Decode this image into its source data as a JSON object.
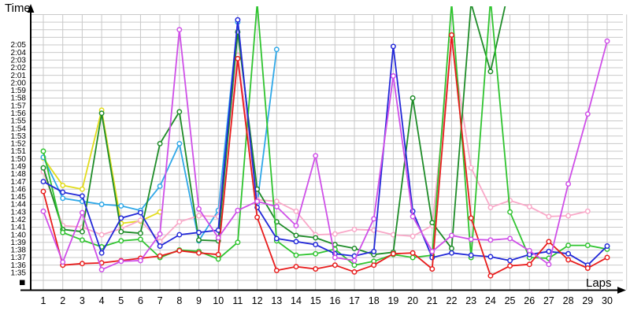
{
  "axes": {
    "y_title": "Time",
    "x_title": "Laps"
  },
  "chart_data": {
    "type": "line",
    "title": "",
    "xlabel": "Laps",
    "ylabel": "Time",
    "x_ticks": [
      1,
      2,
      3,
      4,
      5,
      6,
      7,
      8,
      9,
      10,
      11,
      12,
      13,
      14,
      15,
      16,
      17,
      18,
      19,
      20,
      21,
      22,
      23,
      24,
      25,
      26,
      27,
      28,
      29,
      30
    ],
    "y_tick_labels_top_down": [
      "2:05",
      "2:04",
      "2:03",
      "2:02",
      "2:01",
      "2:00",
      "1:59",
      "1:58",
      "1:57",
      "1:56",
      "1:55",
      "1:54",
      "1:53",
      "1:52",
      "1:51",
      "1:50",
      "1:49",
      "1:48",
      "1:47",
      "1:46",
      "1:45",
      "1:44",
      "1:43",
      "1:42",
      "1:41",
      "1:40",
      "1:39",
      "1:38",
      "1:37",
      "1:36",
      "1:35"
    ],
    "y_axis_seconds_range": [
      95,
      125
    ],
    "grid": true,
    "legend": "none",
    "note_values_unit": "lap time in seconds; 95 = 1:35, 125 = 2:05; values above 129 run off the top of the plot",
    "colors": {
      "grid": "#c9c9c9",
      "axis": "#000000",
      "background": "#ffffff"
    },
    "series": [
      {
        "name": "yellow",
        "color": "#e2dc1a",
        "values": [
          110.1,
          106.5,
          106.0,
          116.4,
          101.5,
          101.8,
          103.0,
          null,
          null,
          null,
          null,
          null,
          null,
          null,
          null,
          null,
          null,
          null,
          null,
          null,
          null,
          null,
          null,
          null,
          null,
          null,
          null,
          null,
          null,
          null
        ]
      },
      {
        "name": "skyblue",
        "color": "#2fa8e8",
        "values": [
          110.2,
          104.8,
          104.4,
          104.0,
          103.8,
          103.2,
          106.4,
          112.0,
          99.2,
          103.2,
          128.0,
          104.1,
          124.4,
          null,
          null,
          null,
          null,
          null,
          null,
          null,
          null,
          null,
          null,
          null,
          null,
          null,
          null,
          null,
          null,
          null
        ]
      },
      {
        "name": "pink",
        "color": "#f9a8c8",
        "values": [
          108.3,
          101.2,
          101.0,
          100.0,
          100.8,
          101.9,
          99.1,
          101.7,
          102.5,
          102.4,
          123.6,
          104.6,
          104.4,
          103.1,
          100.0,
          100.1,
          100.7,
          100.6,
          100.0,
          99.8,
          101.2,
          125.5,
          108.8,
          103.6,
          104.5,
          103.7,
          102.4,
          102.5,
          103.1,
          null
        ]
      },
      {
        "name": "darkgreen",
        "color": "#1e8c28",
        "values": [
          108.8,
          100.7,
          100.4,
          116.0,
          100.4,
          100.2,
          112.0,
          116.2,
          99.3,
          99.2,
          126.7,
          106.0,
          101.7,
          99.9,
          99.6,
          98.7,
          98.2,
          97.4,
          97.7,
          118.0,
          101.6,
          98.2,
          130.5,
          121.5,
          133.0,
          null,
          null,
          null,
          null,
          null
        ]
      },
      {
        "name": "green",
        "color": "#2fc42f",
        "values": [
          111.0,
          100.3,
          99.3,
          98.4,
          99.2,
          99.4,
          97.0,
          98.0,
          97.8,
          96.8,
          99.0,
          130.5,
          99.2,
          97.3,
          97.5,
          98.1,
          96.0,
          96.5,
          97.4,
          97.0,
          97.3,
          130.5,
          97.0,
          131.0,
          103.0,
          97.0,
          96.9,
          98.6,
          98.6,
          98.1
        ]
      },
      {
        "name": "blue",
        "color": "#2228d8",
        "values": [
          107.0,
          105.6,
          105.1,
          97.6,
          102.2,
          102.9,
          98.5,
          100.0,
          100.3,
          100.6,
          128.3,
          103.6,
          99.5,
          99.1,
          98.7,
          97.5,
          97.2,
          97.8,
          124.8,
          103.1,
          97.0,
          97.6,
          97.3,
          97.1,
          96.6,
          97.4,
          97.8,
          97.5,
          96.0,
          98.5
        ]
      },
      {
        "name": "red",
        "color": "#e81c1c",
        "values": [
          105.7,
          96.0,
          96.2,
          96.3,
          96.6,
          96.9,
          97.2,
          97.9,
          97.6,
          97.4,
          123.2,
          102.3,
          95.3,
          95.8,
          95.5,
          96.0,
          95.1,
          96.0,
          97.5,
          97.6,
          95.5,
          126.3,
          102.2,
          94.6,
          95.9,
          96.1,
          99.1,
          96.7,
          95.6,
          97.0
        ]
      },
      {
        "name": "violet",
        "color": "#cf4fe8",
        "values": [
          103.1,
          96.4,
          102.9,
          95.4,
          96.5,
          96.6,
          100.1,
          127.0,
          103.4,
          99.6,
          103.2,
          104.4,
          103.7,
          101.2,
          110.4,
          97.0,
          96.6,
          102.1,
          120.9,
          102.4,
          97.8,
          99.9,
          99.4,
          99.3,
          99.5,
          97.9,
          96.1,
          106.7,
          115.9,
          125.5
        ]
      }
    ]
  }
}
